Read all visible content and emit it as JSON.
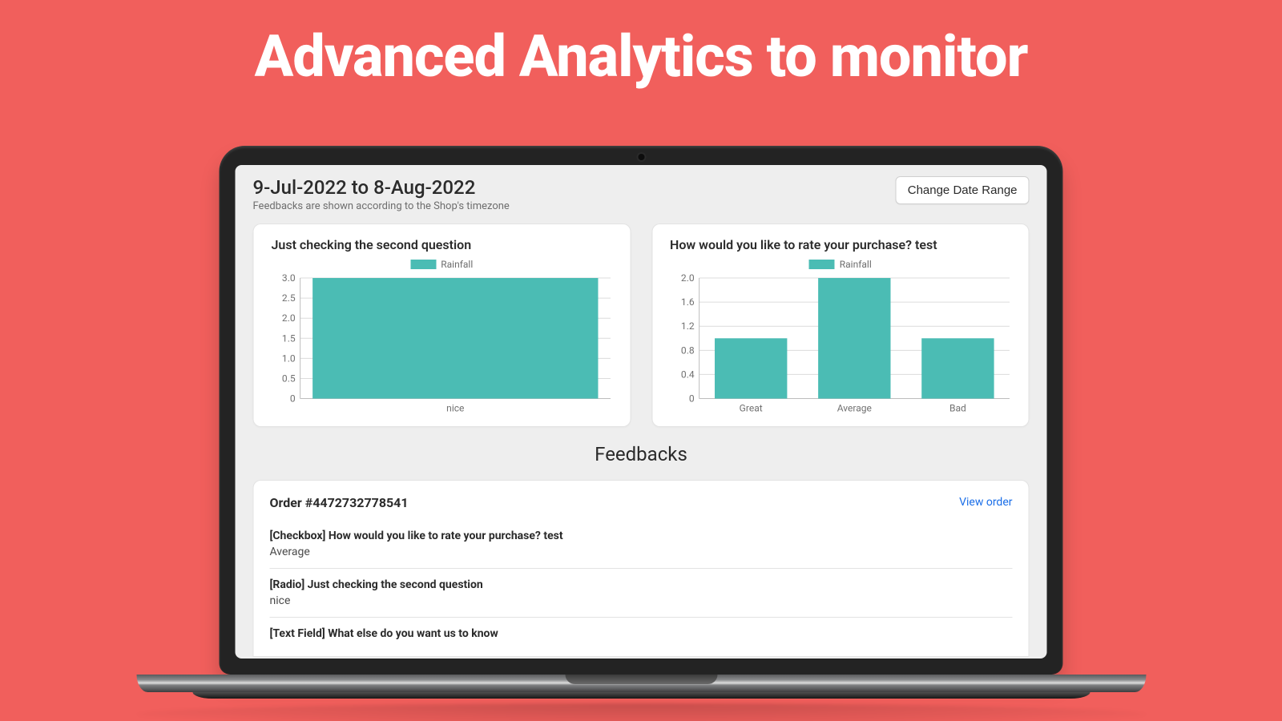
{
  "hero": {
    "title": "Advanced Analytics to monitor",
    "background_color": "#f15f5c",
    "title_color": "#ffffff"
  },
  "app": {
    "background_color": "#eeeeee",
    "header": {
      "date_range": "9-Jul-2022 to 8-Aug-2022",
      "subtitle": "Feedbacks are shown according to the Shop's timezone",
      "change_button_label": "Change Date Range"
    },
    "charts": [
      {
        "type": "bar",
        "title": "Just checking the second question",
        "legend_label": "Rainfall",
        "categories": [
          "nice"
        ],
        "values": [
          3
        ],
        "bar_color": "#4bbcb4",
        "ylim": [
          0,
          3
        ],
        "yticks": [
          0,
          0.5,
          1.0,
          1.5,
          2.0,
          2.5,
          3.0
        ],
        "grid_color": "#dcdcdc",
        "axis_color": "#bdbdbd",
        "tick_label_color": "#707070",
        "bar_width_ratio": 0.92
      },
      {
        "type": "bar",
        "title": "How would you like to rate your purchase? test",
        "legend_label": "Rainfall",
        "categories": [
          "Great",
          "Average",
          "Bad"
        ],
        "values": [
          1,
          2,
          1
        ],
        "bar_color": "#4bbcb4",
        "ylim": [
          0,
          2
        ],
        "yticks": [
          0,
          0.4,
          0.8,
          1.2,
          1.6,
          2.0
        ],
        "grid_color": "#dcdcdc",
        "axis_color": "#bdbdbd",
        "tick_label_color": "#707070",
        "bar_width_ratio": 0.7
      }
    ],
    "feedbacks_heading": "Feedbacks",
    "feedback": {
      "order_label": "Order #4472732778541",
      "view_order_label": "View order",
      "view_order_link_color": "#1a6ee8",
      "items": [
        {
          "question": "[Checkbox] How would you like to rate your purchase? test",
          "answer": "Average"
        },
        {
          "question": "[Radio] Just checking the second question",
          "answer": "nice"
        },
        {
          "question": "[Text Field] What else do you want us to know",
          "answer": ""
        }
      ]
    }
  }
}
